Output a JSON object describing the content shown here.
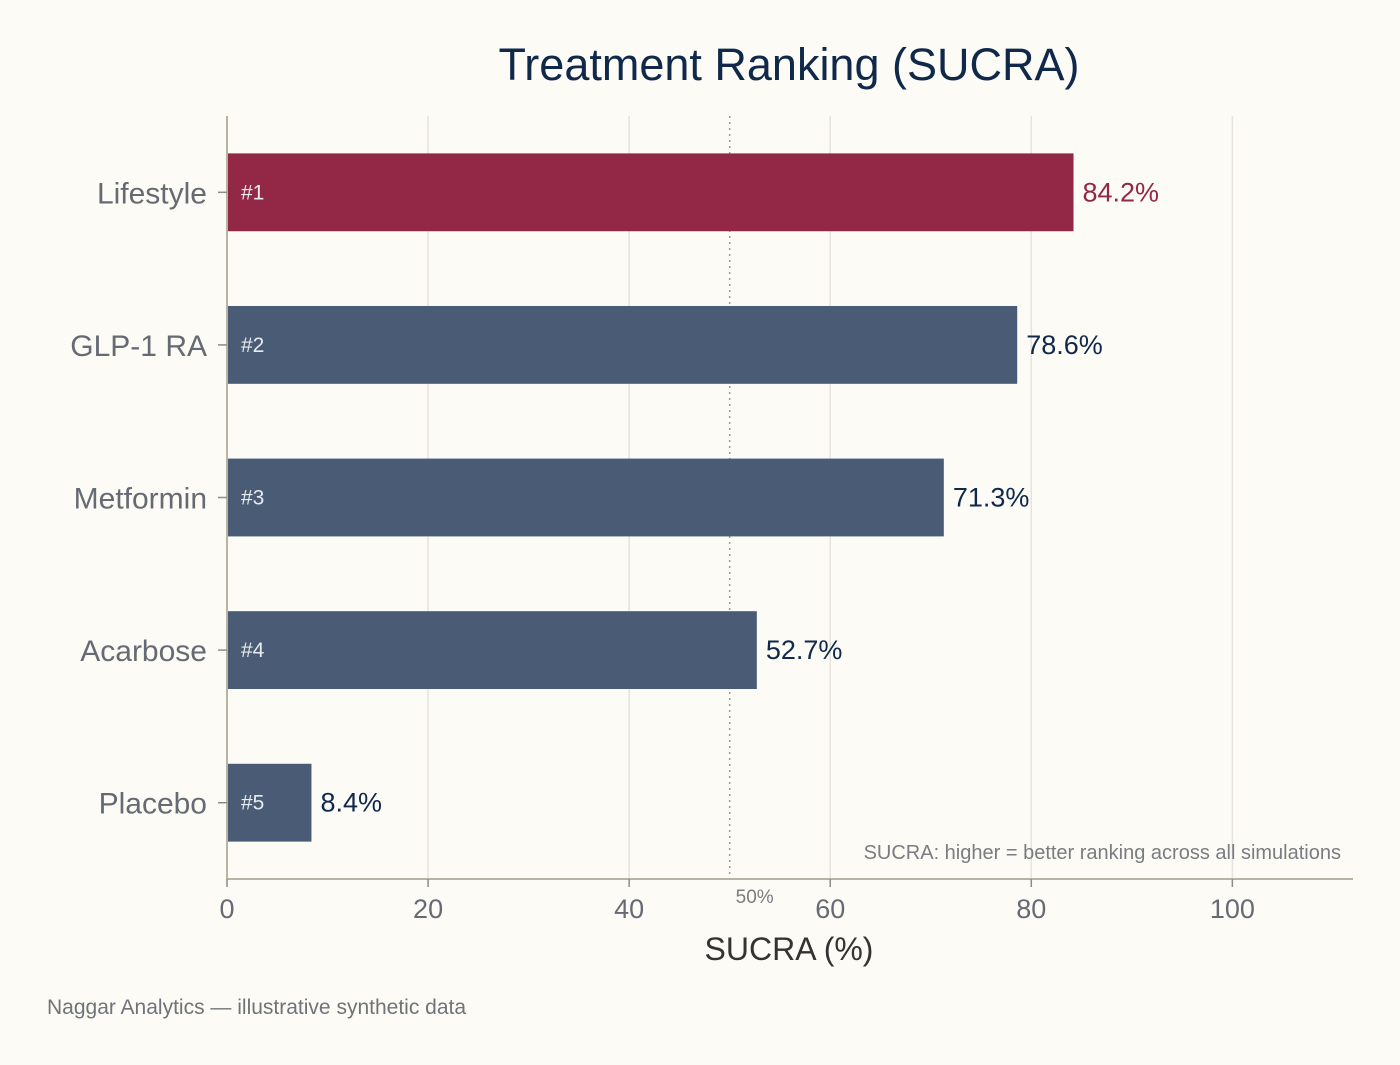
{
  "chart_data": {
    "type": "bar",
    "orientation": "horizontal",
    "title": "Treatment Ranking (SUCRA)",
    "xlabel": "SUCRA (%)",
    "ylabel": "",
    "categories": [
      "Lifestyle",
      "GLP-1 RA",
      "Metformin",
      "Acarbose",
      "Placebo"
    ],
    "values": [
      84.2,
      78.6,
      71.3,
      52.7,
      8.4
    ],
    "value_labels": [
      "84.2%",
      "78.6%",
      "71.3%",
      "52.7%",
      "8.4%"
    ],
    "ranks": [
      "#1",
      "#2",
      "#3",
      "#4",
      "#5"
    ],
    "xlim": [
      0,
      112
    ],
    "xticks": [
      0,
      20,
      40,
      60,
      80,
      100
    ],
    "grid": "vertical",
    "highlight_index": 0,
    "reference_line": {
      "value": 50,
      "label": "50%"
    },
    "note": "SUCRA: higher = better ranking across all simulations",
    "colors": {
      "highlight": "#922845",
      "bar": "#495b75",
      "value_text": "#10294a"
    }
  },
  "footer": "Naggar Analytics — illustrative synthetic data"
}
